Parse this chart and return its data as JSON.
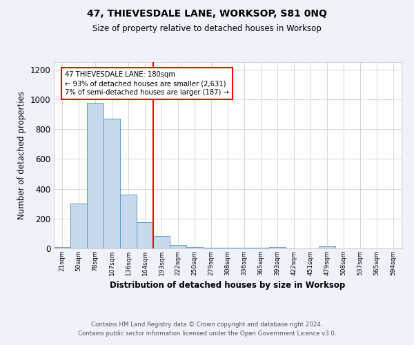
{
  "title": "47, THIEVESDALE LANE, WORKSOP, S81 0NQ",
  "subtitle": "Size of property relative to detached houses in Worksop",
  "xlabel": "Distribution of detached houses by size in Worksop",
  "ylabel": "Number of detached properties",
  "footer_line1": "Contains HM Land Registry data © Crown copyright and database right 2024.",
  "footer_line2": "Contains public sector information licensed under the Open Government Licence v3.0.",
  "bin_labels": [
    "21sqm",
    "50sqm",
    "78sqm",
    "107sqm",
    "136sqm",
    "164sqm",
    "193sqm",
    "222sqm",
    "250sqm",
    "279sqm",
    "308sqm",
    "336sqm",
    "365sqm",
    "393sqm",
    "422sqm",
    "451sqm",
    "479sqm",
    "508sqm",
    "537sqm",
    "565sqm",
    "594sqm"
  ],
  "bar_values": [
    10,
    300,
    975,
    870,
    360,
    175,
    85,
    25,
    8,
    5,
    5,
    5,
    5,
    8,
    0,
    0,
    12,
    0,
    0,
    0,
    0
  ],
  "bar_color": "#c8d9ed",
  "bar_edge_color": "#5b9bd5",
  "vline_x": 5.5,
  "vline_color": "red",
  "annotation_text": "47 THIEVESDALE LANE: 180sqm\n← 93% of detached houses are smaller (2,631)\n7% of semi-detached houses are larger (187) →",
  "annotation_box_color": "white",
  "annotation_box_edge_color": "red",
  "ylim": [
    0,
    1250
  ],
  "yticks": [
    0,
    200,
    400,
    600,
    800,
    1000,
    1200
  ],
  "bg_color": "#eef2fb",
  "plot_bg_color": "white",
  "grid_color": "#d0d0d0"
}
